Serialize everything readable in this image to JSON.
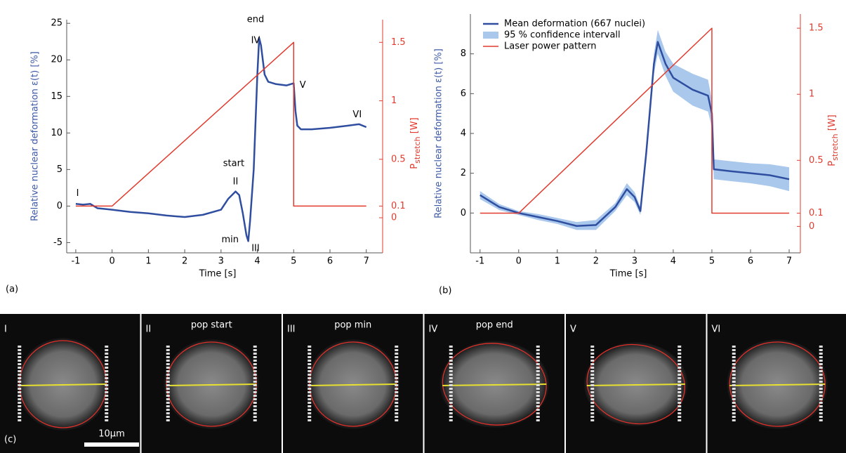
{
  "chart_data": [
    {
      "type": "line",
      "panel_label": "(a)",
      "xlabel": "Time [s]",
      "ylabel": "Relative nuclear deformation  ε(t) [%]",
      "y2label": "P",
      "y2label_sub": "stretch",
      "y2label_unit": "[W]",
      "xlim": [
        -1.25,
        7.45
      ],
      "xticks": [
        -1,
        0,
        1,
        2,
        3,
        4,
        5,
        6,
        7
      ],
      "ylim": [
        -6.4,
        25.5
      ],
      "yticks": [
        -5,
        0,
        5,
        10,
        15,
        20,
        25
      ],
      "y2lim": [
        -0.3,
        1.694
      ],
      "y2ticks": [
        0,
        0.1,
        0.5,
        1,
        1.5
      ],
      "series": [
        {
          "color": "#2f4ea0",
          "x": [
            -1,
            -0.8,
            -0.6,
            -0.4,
            -0.2,
            0,
            0.5,
            1,
            1.5,
            2,
            2.5,
            3,
            3.2,
            3.4,
            3.5,
            3.6,
            3.7,
            3.75,
            3.8,
            3.9,
            4.0,
            4.05,
            4.1,
            4.2,
            4.3,
            4.5,
            4.8,
            5.0,
            5.05,
            5.1,
            5.2,
            5.5,
            6,
            6.5,
            6.8,
            7
          ],
          "values": [
            0.3,
            0.2,
            0.3,
            -0.3,
            -0.4,
            -0.5,
            -0.8,
            -1,
            -1.3,
            -1.5,
            -1.2,
            -0.5,
            1,
            2,
            1.5,
            -1,
            -4,
            -4.8,
            -2,
            5,
            18,
            23,
            22,
            18,
            17,
            16.7,
            16.5,
            16.8,
            13,
            11,
            10.5,
            10.5,
            10.7,
            11,
            11.2,
            10.8
          ]
        },
        {
          "color": "#e23b2e",
          "axis": "y2",
          "x": [
            -1,
            0,
            5,
            5,
            7
          ],
          "values": [
            0.1,
            0.1,
            1.5,
            0.1,
            0.1
          ]
        }
      ],
      "annotations": [
        "I",
        "start",
        "II",
        "min",
        "III",
        "end",
        "IV",
        "V",
        "VI"
      ]
    },
    {
      "type": "line",
      "panel_label": "(b)",
      "xlabel": "Time [s]",
      "ylabel": "Relative nuclear deformation   ε(t) [%]",
      "y2label": "P",
      "y2label_sub": "stretch",
      "y2label_unit": "[W]",
      "xlim": [
        -1.25,
        7.29
      ],
      "xticks": [
        -1,
        0,
        1,
        2,
        3,
        4,
        5,
        6,
        7
      ],
      "ylim": [
        -2,
        10
      ],
      "yticks": [
        0,
        2,
        4,
        6,
        8
      ],
      "y2lim": [
        -0.2,
        1.607
      ],
      "y2ticks": [
        0,
        0.1,
        0.5,
        1,
        1.5
      ],
      "legend": "upper left",
      "series": [
        {
          "name": "Mean deformation (667 nuclei)",
          "color": "#2f4ea0",
          "x": [
            -1,
            -0.5,
            0,
            0.5,
            1,
            1.5,
            2,
            2.5,
            2.8,
            3,
            3.15,
            3.3,
            3.5,
            3.6,
            3.8,
            4,
            4.5,
            4.9,
            5,
            5.05,
            5.5,
            6,
            6.5,
            7
          ],
          "values": [
            0.9,
            0.3,
            0,
            -0.2,
            -0.4,
            -0.65,
            -0.6,
            0.3,
            1.2,
            0.8,
            0.1,
            3,
            7.5,
            8.6,
            7.5,
            6.8,
            6.2,
            5.9,
            5,
            2.2,
            2.1,
            2.0,
            1.9,
            1.7
          ]
        },
        {
          "name": "95 % confidence intervall",
          "color": "#a9c8ec",
          "x": [
            -1,
            -0.5,
            0,
            0.5,
            1,
            1.5,
            2,
            2.5,
            2.8,
            3,
            3.15,
            3.3,
            3.5,
            3.6,
            3.8,
            4,
            4.5,
            4.9,
            5,
            5.05,
            5.5,
            6,
            6.5,
            7
          ],
          "lower": [
            0.7,
            0.15,
            -0.1,
            -0.35,
            -0.55,
            -0.85,
            -0.85,
            0.1,
            0.9,
            0.55,
            -0.1,
            2.6,
            7,
            8,
            6.9,
            6.1,
            5.4,
            5.1,
            4.3,
            1.7,
            1.6,
            1.5,
            1.35,
            1.1
          ],
          "upper": [
            1.1,
            0.45,
            0.1,
            -0.05,
            -0.25,
            -0.45,
            -0.35,
            0.5,
            1.5,
            1.05,
            0.3,
            3.4,
            8,
            9.2,
            8.1,
            7.5,
            7,
            6.7,
            5.7,
            2.7,
            2.6,
            2.5,
            2.45,
            2.3
          ]
        },
        {
          "name": "Laser power pattern",
          "color": "#e23b2e",
          "axis": "y2",
          "x": [
            -1,
            0,
            5,
            5,
            7
          ],
          "values": [
            0.1,
            0.1,
            1.5,
            0.1,
            0.1
          ]
        }
      ]
    }
  ],
  "panel_c": {
    "label": "(c)",
    "scale_bar": "10µm",
    "frames": [
      {
        "label": "I"
      },
      {
        "label": "II",
        "caption": "pop start"
      },
      {
        "label": "III",
        "caption": "pop min"
      },
      {
        "label": "IV",
        "caption": "pop end"
      },
      {
        "label": "V"
      },
      {
        "label": "VI"
      }
    ]
  }
}
